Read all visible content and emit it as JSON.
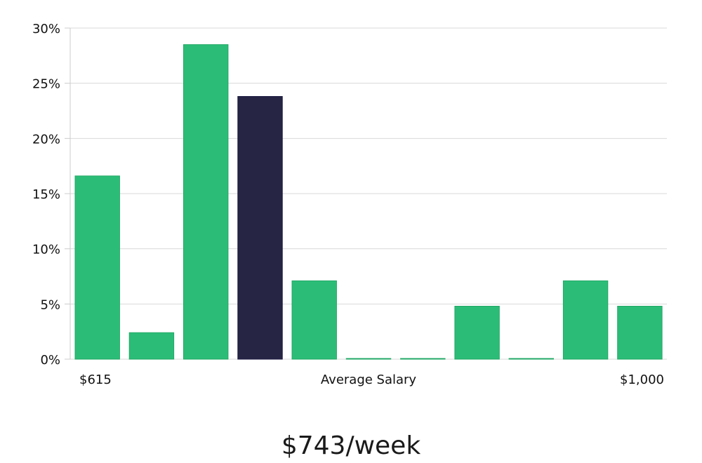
{
  "chart_data": {
    "type": "bar",
    "values": [
      16.6,
      2.4,
      28.5,
      23.8,
      7.1,
      0,
      0,
      4.8,
      0,
      7.1,
      4.8
    ],
    "highlight_index": 3,
    "ylim": [
      0,
      30
    ],
    "y_ticks": [
      0,
      5,
      10,
      15,
      20,
      25,
      30
    ],
    "y_tick_labels": [
      "0%",
      "5%",
      "10%",
      "15%",
      "20%",
      "25%",
      "30%"
    ],
    "x_min_label": "$615",
    "x_max_label": "$1,000",
    "xlabel": "Average Salary",
    "headline": "$743/week",
    "grid": true,
    "colors": {
      "bar": "#2bbd77",
      "highlight": "#272544",
      "grid": "#d9d9d9",
      "axis": "#cccccc"
    }
  }
}
